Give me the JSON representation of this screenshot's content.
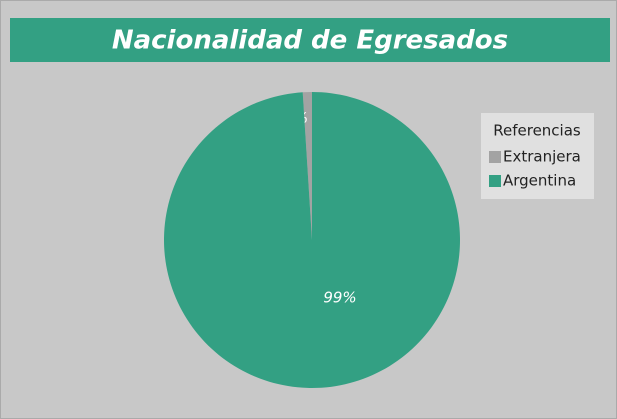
{
  "chart_data": {
    "type": "pie",
    "title": "Nacionalidad de Egresados",
    "legend_title": "Referencias",
    "legend": "right",
    "categories": [
      "Extranjera",
      "Argentina"
    ],
    "values": [
      1,
      99
    ],
    "value_labels": [
      "1%",
      "99%"
    ],
    "colors": [
      "#a3a3a3",
      "#33a083"
    ]
  }
}
